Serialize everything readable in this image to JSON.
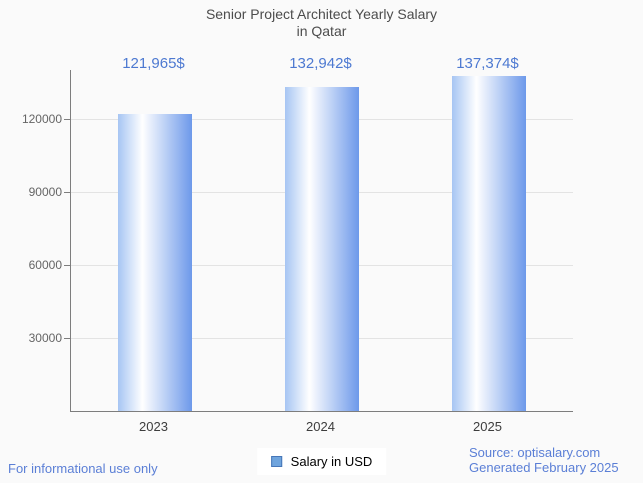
{
  "chart_data": {
    "type": "bar",
    "title": "Senior Project Architect Yearly Salary in Qatar",
    "title_lines": [
      "Senior Project Architect Yearly Salary",
      "in Qatar"
    ],
    "categories": [
      "2023",
      "2024",
      "2025"
    ],
    "series": [
      {
        "name": "Salary in USD",
        "values": [
          121965,
          132942,
          137374
        ]
      }
    ],
    "value_labels": [
      "121,965$",
      "132,942$",
      "137,374$"
    ],
    "y_ticks": [
      30000,
      60000,
      90000,
      120000
    ],
    "y_tick_labels": [
      "30000",
      "60000",
      "90000",
      "120000"
    ],
    "ylim": [
      0,
      140000
    ],
    "xlabel": "",
    "ylabel": "",
    "grid": true,
    "legend_position": "bottom"
  },
  "legend": {
    "label": "Salary in USD"
  },
  "footer": {
    "disclaimer": "For informational use only",
    "source_line1": "Source: optisalary.com",
    "source_line2": "Generated February 2025"
  },
  "colors": {
    "background": "#fafafa",
    "title_text": "#4c4c4c",
    "tick_text": "#656565",
    "x_label_text": "#3d3d3d",
    "axis_line": "#7d7d7d",
    "gridline": "#e3e3e3",
    "value_label_text": "#4d79d1",
    "footer_text": "#5b7fd6",
    "bar_gradient_left": "#a6c5f3",
    "bar_gradient_mid": "#ffffff",
    "bar_gradient_right": "#6d99ea",
    "legend_swatch_fill": "#6fa4dd",
    "legend_swatch_border": "#4676b8"
  }
}
